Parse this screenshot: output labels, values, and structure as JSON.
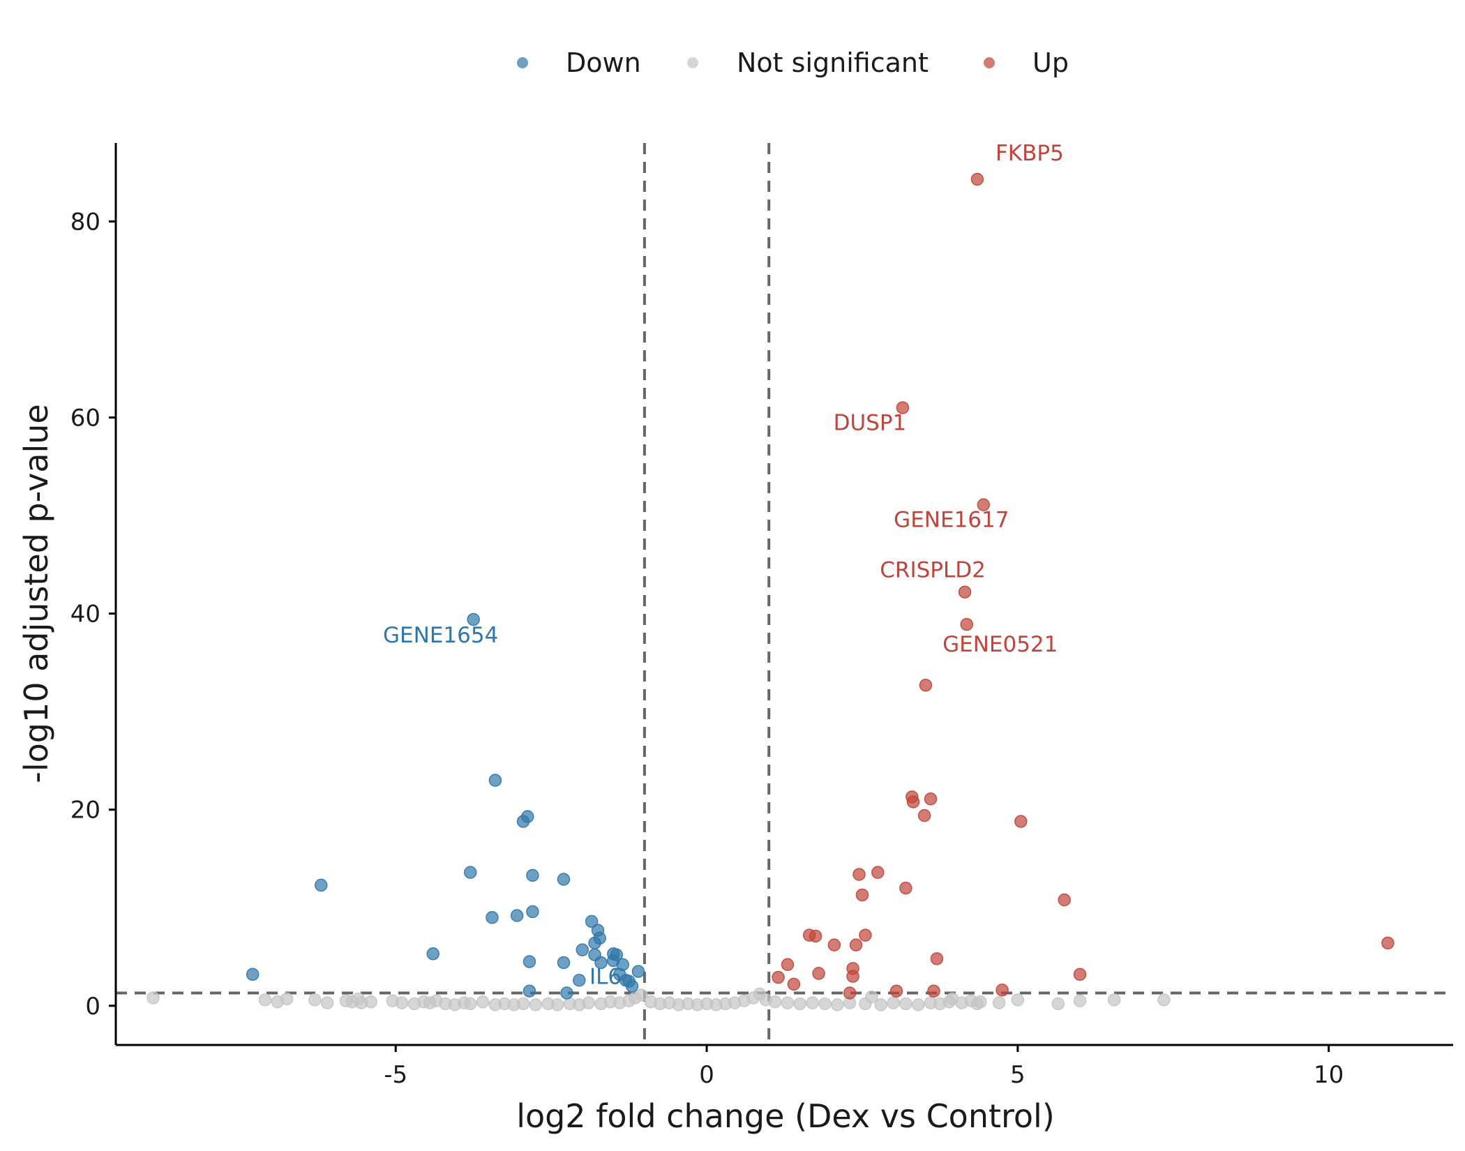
{
  "chart_data": {
    "type": "scatter",
    "title": "",
    "xlabel": "log2 fold change (Dex vs Control)",
    "ylabel": "-log10 adjusted p-value",
    "xlim": [
      -9.5,
      12
    ],
    "ylim": [
      -4,
      88
    ],
    "x_ticks": [
      -5,
      0,
      5,
      10
    ],
    "y_ticks": [
      0,
      20,
      40,
      60,
      80
    ],
    "thresholds": {
      "log2fc": [
        -1,
        1
      ],
      "neg_log10_padj": 1.3
    },
    "grid": false,
    "legend_position": "top",
    "colors": {
      "Down": "#2f77a8",
      "Not significant": "#c4c4c4",
      "Up": "#c0443a",
      "threshold_line": "#666666"
    },
    "series": [
      {
        "name": "Down",
        "points": [
          [
            -7.3,
            3.2
          ],
          [
            -6.2,
            12.3
          ],
          [
            -4.4,
            5.3
          ],
          [
            -3.8,
            13.6
          ],
          [
            -3.75,
            39.4
          ],
          [
            -3.45,
            9.0
          ],
          [
            -3.4,
            23.0
          ],
          [
            -3.05,
            9.2
          ],
          [
            -2.95,
            18.8
          ],
          [
            -2.88,
            19.3
          ],
          [
            -2.85,
            4.5
          ],
          [
            -2.85,
            1.5
          ],
          [
            -2.8,
            13.3
          ],
          [
            -2.8,
            9.6
          ],
          [
            -2.3,
            12.9
          ],
          [
            -2.3,
            4.4
          ],
          [
            -2.25,
            1.3
          ],
          [
            -2.05,
            2.6
          ],
          [
            -2.0,
            5.7
          ],
          [
            -1.85,
            8.6
          ],
          [
            -1.8,
            6.4
          ],
          [
            -1.8,
            5.2
          ],
          [
            -1.75,
            7.7
          ],
          [
            -1.72,
            6.9
          ],
          [
            -1.7,
            4.4
          ],
          [
            -1.5,
            5.3
          ],
          [
            -1.5,
            4.6
          ],
          [
            -1.45,
            5.2
          ],
          [
            -1.4,
            3.2
          ],
          [
            -1.35,
            4.2
          ],
          [
            -1.3,
            2.6
          ],
          [
            -1.25,
            2.5
          ],
          [
            -1.2,
            2.0
          ],
          [
            -1.1,
            3.5
          ]
        ]
      },
      {
        "name": "Not significant",
        "points": [
          [
            -8.9,
            0.8
          ],
          [
            -7.1,
            0.6
          ],
          [
            -6.9,
            0.4
          ],
          [
            -6.75,
            0.7
          ],
          [
            -6.3,
            0.6
          ],
          [
            -6.1,
            0.3
          ],
          [
            -5.8,
            0.5
          ],
          [
            -5.7,
            0.4
          ],
          [
            -5.6,
            0.7
          ],
          [
            -5.55,
            0.3
          ],
          [
            -5.4,
            0.4
          ],
          [
            -5.05,
            0.5
          ],
          [
            -4.9,
            0.3
          ],
          [
            -4.7,
            0.2
          ],
          [
            -4.55,
            0.4
          ],
          [
            -4.45,
            0.3
          ],
          [
            -4.35,
            0.5
          ],
          [
            -4.2,
            0.2
          ],
          [
            -4.05,
            0.1
          ],
          [
            -3.9,
            0.3
          ],
          [
            -3.8,
            0.2
          ],
          [
            -3.6,
            0.4
          ],
          [
            -3.4,
            0.1
          ],
          [
            -3.25,
            0.2
          ],
          [
            -3.1,
            0.1
          ],
          [
            -2.95,
            0.2
          ],
          [
            -2.75,
            0.1
          ],
          [
            -2.55,
            0.2
          ],
          [
            -2.4,
            0.1
          ],
          [
            -2.2,
            0.2
          ],
          [
            -2.05,
            0.1
          ],
          [
            -1.9,
            0.3
          ],
          [
            -1.7,
            0.2
          ],
          [
            -1.55,
            0.4
          ],
          [
            -1.4,
            0.3
          ],
          [
            -1.25,
            0.5
          ],
          [
            -1.15,
            0.8
          ],
          [
            -1.05,
            1.1
          ],
          [
            -0.9,
            0.4
          ],
          [
            -0.75,
            0.2
          ],
          [
            -0.6,
            0.3
          ],
          [
            -0.45,
            0.1
          ],
          [
            -0.3,
            0.2
          ],
          [
            -0.15,
            0.1
          ],
          [
            0.0,
            0.2
          ],
          [
            0.15,
            0.1
          ],
          [
            0.3,
            0.2
          ],
          [
            0.45,
            0.3
          ],
          [
            0.6,
            0.5
          ],
          [
            0.75,
            0.8
          ],
          [
            0.85,
            1.2
          ],
          [
            0.95,
            0.6
          ],
          [
            1.1,
            0.4
          ],
          [
            1.3,
            0.3
          ],
          [
            1.5,
            0.2
          ],
          [
            1.7,
            0.3
          ],
          [
            1.9,
            0.2
          ],
          [
            2.1,
            0.1
          ],
          [
            2.3,
            0.3
          ],
          [
            2.55,
            0.2
          ],
          [
            2.65,
            0.9
          ],
          [
            2.8,
            0.1
          ],
          [
            3.0,
            0.3
          ],
          [
            3.2,
            0.2
          ],
          [
            3.4,
            0.1
          ],
          [
            3.6,
            0.3
          ],
          [
            3.75,
            0.2
          ],
          [
            3.9,
            0.4
          ],
          [
            3.95,
            0.7
          ],
          [
            4.1,
            0.3
          ],
          [
            4.25,
            0.5
          ],
          [
            4.35,
            0.2
          ],
          [
            4.4,
            0.4
          ],
          [
            4.7,
            0.3
          ],
          [
            5.0,
            0.6
          ],
          [
            5.65,
            0.2
          ],
          [
            6.0,
            0.5
          ],
          [
            6.55,
            0.6
          ],
          [
            7.35,
            0.6
          ]
        ]
      },
      {
        "name": "Up",
        "points": [
          [
            1.15,
            2.9
          ],
          [
            1.3,
            4.2
          ],
          [
            1.4,
            2.2
          ],
          [
            1.65,
            7.2
          ],
          [
            1.75,
            7.1
          ],
          [
            1.8,
            3.3
          ],
          [
            2.05,
            6.2
          ],
          [
            2.3,
            1.3
          ],
          [
            2.35,
            3.0
          ],
          [
            2.35,
            3.8
          ],
          [
            2.4,
            6.2
          ],
          [
            2.45,
            13.4
          ],
          [
            2.5,
            11.3
          ],
          [
            2.55,
            7.2
          ],
          [
            2.75,
            13.6
          ],
          [
            3.05,
            1.5
          ],
          [
            3.15,
            61.0
          ],
          [
            3.2,
            12.0
          ],
          [
            3.3,
            21.3
          ],
          [
            3.32,
            20.8
          ],
          [
            3.5,
            19.4
          ],
          [
            3.52,
            32.7
          ],
          [
            3.6,
            21.1
          ],
          [
            3.65,
            1.5
          ],
          [
            3.7,
            4.8
          ],
          [
            4.15,
            42.2
          ],
          [
            4.18,
            38.9
          ],
          [
            4.35,
            84.3
          ],
          [
            4.45,
            51.1
          ],
          [
            4.75,
            1.6
          ],
          [
            5.05,
            18.8
          ],
          [
            5.75,
            10.8
          ],
          [
            6.0,
            3.2
          ],
          [
            10.95,
            6.4
          ]
        ]
      }
    ],
    "annotations": [
      {
        "text": "FKBP5",
        "series": "Up",
        "x": 4.35,
        "y": 84.3
      },
      {
        "text": "DUSP1",
        "series": "Up",
        "x": 3.15,
        "y": 61.0
      },
      {
        "text": "GENE1617",
        "series": "Up",
        "x": 4.45,
        "y": 51.1
      },
      {
        "text": "CRISPLD2",
        "series": "Up",
        "x": 4.15,
        "y": 42.2
      },
      {
        "text": "GENE0521",
        "series": "Up",
        "x": 4.18,
        "y": 38.9
      },
      {
        "text": "GENE1654",
        "series": "Down",
        "x": -3.75,
        "y": 39.4
      },
      {
        "text": "IL6",
        "series": "Down",
        "x": -1.2,
        "y": 2.0
      }
    ]
  }
}
